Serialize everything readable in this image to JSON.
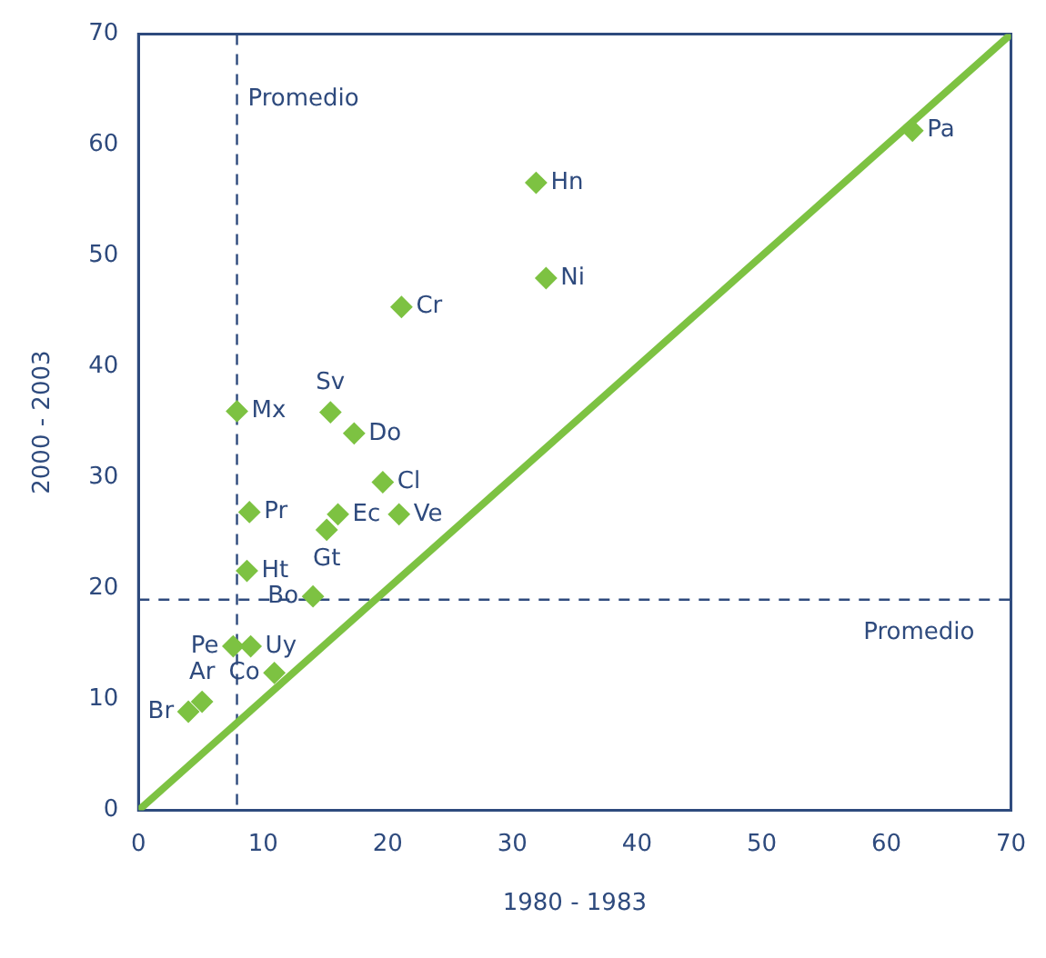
{
  "chart_data": {
    "type": "scatter",
    "xlabel": "1980 - 1983",
    "ylabel": "2000 - 2003",
    "xlim": [
      0,
      70
    ],
    "xticks": [
      0,
      10,
      20,
      30,
      40,
      50,
      60,
      70
    ],
    "ylim": [
      0,
      70
    ],
    "yticks": [
      0,
      10,
      20,
      30,
      40,
      50,
      60,
      70
    ],
    "grid": false,
    "legend": false,
    "series": [
      {
        "type": "scatter",
        "marker": "diamond",
        "color": "#7dc242",
        "x": [
          62.1,
          31.9,
          32.7,
          21.1,
          7.9,
          15.4,
          17.3,
          19.6,
          8.9,
          16.0,
          20.9,
          15.1,
          8.7,
          14.0,
          7.6,
          9.0,
          10.9,
          5.1,
          4.0
        ],
        "values": [
          61.3,
          56.6,
          48.0,
          45.4,
          36.0,
          35.9,
          34.0,
          29.6,
          26.9,
          26.7,
          26.7,
          25.3,
          21.6,
          19.3,
          14.8,
          14.8,
          12.4,
          9.8,
          8.9
        ]
      },
      {
        "type": "line",
        "marker": "none",
        "color": "#7dc242",
        "x": [
          0,
          70
        ],
        "values": [
          0,
          70
        ]
      }
    ],
    "ref_lines": [
      {
        "axis": "x",
        "value": 7.9,
        "label": "Promedio",
        "color": "#2e4a7d",
        "line_style": "dashed"
      },
      {
        "axis": "y",
        "value": 19.0,
        "label": "Promedio",
        "color": "#2e4a7d",
        "line_style": "dashed"
      }
    ],
    "annotations": [
      {
        "text": "Pa",
        "x": 62.1,
        "y": 61.3
      },
      {
        "text": "Hn",
        "x": 31.9,
        "y": 56.6
      },
      {
        "text": "Ni",
        "x": 32.7,
        "y": 48.0
      },
      {
        "text": "Cr",
        "x": 21.1,
        "y": 45.4
      },
      {
        "text": "Mx",
        "x": 7.9,
        "y": 36.0
      },
      {
        "text": "Sv",
        "x": 15.4,
        "y": 35.9
      },
      {
        "text": "Do",
        "x": 17.3,
        "y": 34.0
      },
      {
        "text": "Cl",
        "x": 19.6,
        "y": 29.6
      },
      {
        "text": "Pr",
        "x": 8.9,
        "y": 26.9
      },
      {
        "text": "Ec",
        "x": 16.0,
        "y": 26.7
      },
      {
        "text": "Ve",
        "x": 20.9,
        "y": 26.7
      },
      {
        "text": "Gt",
        "x": 15.1,
        "y": 25.3
      },
      {
        "text": "Ht",
        "x": 8.7,
        "y": 21.6
      },
      {
        "text": "Bo",
        "x": 14.0,
        "y": 19.3
      },
      {
        "text": "Pe",
        "x": 7.6,
        "y": 14.8
      },
      {
        "text": "Uy",
        "x": 9.0,
        "y": 14.8
      },
      {
        "text": "Co",
        "x": 10.9,
        "y": 12.4
      },
      {
        "text": "Ar",
        "x": 5.1,
        "y": 9.8
      },
      {
        "text": "Br",
        "x": 4.0,
        "y": 8.9
      }
    ]
  }
}
